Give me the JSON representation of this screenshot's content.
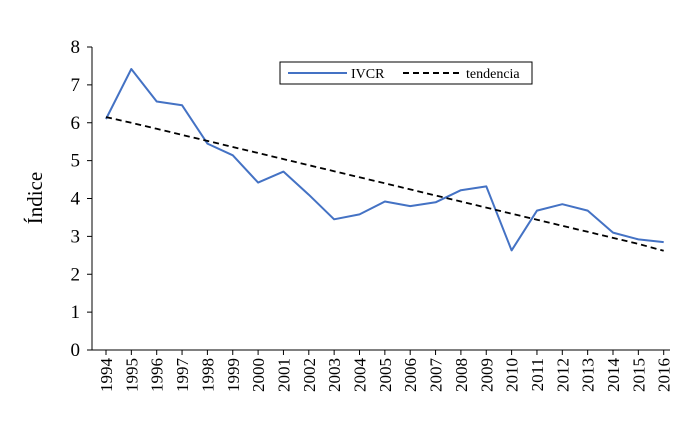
{
  "colors": {
    "series_line": "#4472C4",
    "trend_line": "#000000",
    "axis": "#000000"
  },
  "chart_data": {
    "type": "line",
    "title": "",
    "xlabel": "",
    "ylabel": "Índice",
    "ylim": [
      0,
      8
    ],
    "y_ticks": [
      "0",
      "1",
      "2",
      "3",
      "4",
      "5",
      "6",
      "7",
      "8"
    ],
    "x": [
      "1994",
      "1995",
      "1996",
      "1997",
      "1998",
      "1999",
      "2000",
      "2001",
      "2002",
      "2003",
      "2004",
      "2005",
      "2006",
      "2007",
      "2008",
      "2009",
      "2010",
      "2011",
      "2012",
      "2013",
      "2014",
      "2015",
      "2016"
    ],
    "grid": false,
    "legend_position": "top-right",
    "series": [
      {
        "name": "IVCR",
        "style": "solid",
        "values": [
          6.1,
          7.42,
          6.56,
          6.46,
          5.45,
          5.14,
          4.42,
          4.71,
          4.1,
          3.45,
          3.58,
          3.92,
          3.8,
          3.9,
          4.22,
          4.32,
          2.63,
          3.68,
          3.85,
          3.68,
          3.1,
          2.92,
          2.85
        ]
      },
      {
        "name": "tendencia",
        "style": "dashed",
        "values": [
          6.15,
          6.0,
          5.84,
          5.68,
          5.52,
          5.36,
          5.2,
          5.04,
          4.88,
          4.72,
          4.56,
          4.4,
          4.24,
          4.08,
          3.92,
          3.76,
          3.6,
          3.44,
          3.28,
          3.12,
          2.96,
          2.8,
          2.62
        ]
      }
    ]
  }
}
